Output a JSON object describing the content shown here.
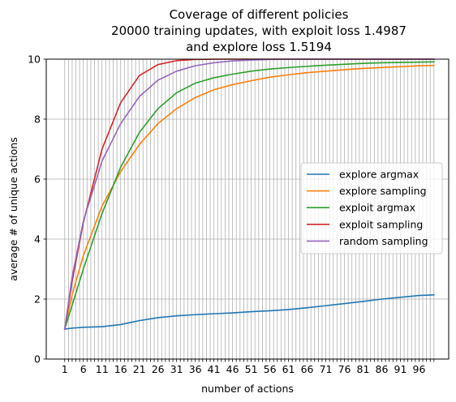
{
  "chart_data": {
    "type": "line",
    "title_lines": [
      "Coverage of different policies",
      "20000 training updates, with exploit loss 1.4987",
      "and explore loss 1.5194"
    ],
    "xlabel": "number of actions",
    "ylabel": "average # of unique actions",
    "xlim": [
      -3.95,
      103.95
    ],
    "ylim": [
      0,
      10
    ],
    "x_ticks": [
      1,
      6,
      11,
      16,
      21,
      26,
      31,
      36,
      41,
      46,
      51,
      56,
      61,
      66,
      71,
      76,
      81,
      86,
      91,
      96
    ],
    "y_ticks": [
      0,
      2,
      4,
      6,
      8,
      10
    ],
    "vertical_grid": "every integer 1-100",
    "horizontal_grid": true,
    "legend_position": "center-right",
    "series": [
      {
        "name": "explore argmax",
        "color": "#1f77b4",
        "points": [
          [
            1,
            1.0
          ],
          [
            3,
            1.03
          ],
          [
            6,
            1.06
          ],
          [
            11,
            1.08
          ],
          [
            16,
            1.15
          ],
          [
            21,
            1.28
          ],
          [
            26,
            1.38
          ],
          [
            31,
            1.44
          ],
          [
            36,
            1.48
          ],
          [
            41,
            1.51
          ],
          [
            46,
            1.54
          ],
          [
            51,
            1.58
          ],
          [
            56,
            1.61
          ],
          [
            61,
            1.65
          ],
          [
            66,
            1.71
          ],
          [
            71,
            1.78
          ],
          [
            76,
            1.85
          ],
          [
            81,
            1.92
          ],
          [
            86,
            2.0
          ],
          [
            91,
            2.06
          ],
          [
            96,
            2.12
          ],
          [
            100,
            2.14
          ]
        ]
      },
      {
        "name": "explore sampling",
        "color": "#ff7f0e",
        "points": [
          [
            1,
            1.0
          ],
          [
            3,
            2.15
          ],
          [
            6,
            3.45
          ],
          [
            11,
            5.1
          ],
          [
            16,
            6.25
          ],
          [
            21,
            7.15
          ],
          [
            26,
            7.85
          ],
          [
            31,
            8.35
          ],
          [
            36,
            8.72
          ],
          [
            41,
            8.98
          ],
          [
            46,
            9.15
          ],
          [
            51,
            9.28
          ],
          [
            56,
            9.4
          ],
          [
            61,
            9.48
          ],
          [
            66,
            9.55
          ],
          [
            71,
            9.6
          ],
          [
            76,
            9.65
          ],
          [
            81,
            9.69
          ],
          [
            86,
            9.72
          ],
          [
            91,
            9.75
          ],
          [
            96,
            9.78
          ],
          [
            100,
            9.79
          ]
        ]
      },
      {
        "name": "exploit argmax",
        "color": "#2ca02c",
        "points": [
          [
            1,
            1.0
          ],
          [
            3,
            1.8
          ],
          [
            6,
            3.0
          ],
          [
            11,
            4.85
          ],
          [
            16,
            6.4
          ],
          [
            21,
            7.55
          ],
          [
            26,
            8.35
          ],
          [
            31,
            8.88
          ],
          [
            36,
            9.2
          ],
          [
            41,
            9.38
          ],
          [
            46,
            9.5
          ],
          [
            51,
            9.6
          ],
          [
            56,
            9.67
          ],
          [
            61,
            9.72
          ],
          [
            66,
            9.76
          ],
          [
            71,
            9.8
          ],
          [
            76,
            9.83
          ],
          [
            81,
            9.86
          ],
          [
            86,
            9.88
          ],
          [
            91,
            9.89
          ],
          [
            96,
            9.9
          ],
          [
            100,
            9.91
          ]
        ]
      },
      {
        "name": "exploit sampling",
        "color": "#d62728",
        "points": [
          [
            1,
            1.0
          ],
          [
            3,
            2.6
          ],
          [
            6,
            4.55
          ],
          [
            11,
            7.0
          ],
          [
            16,
            8.55
          ],
          [
            21,
            9.45
          ],
          [
            26,
            9.82
          ],
          [
            31,
            9.95
          ],
          [
            36,
            9.99
          ],
          [
            41,
            10.0
          ],
          [
            100,
            10.0
          ]
        ]
      },
      {
        "name": "random sampling",
        "color": "#9467bd",
        "points": [
          [
            1,
            1.0
          ],
          [
            3,
            2.75
          ],
          [
            6,
            4.6
          ],
          [
            11,
            6.6
          ],
          [
            16,
            7.85
          ],
          [
            21,
            8.75
          ],
          [
            26,
            9.3
          ],
          [
            31,
            9.6
          ],
          [
            36,
            9.78
          ],
          [
            41,
            9.88
          ],
          [
            46,
            9.94
          ],
          [
            51,
            9.97
          ],
          [
            56,
            9.99
          ],
          [
            61,
            10.0
          ],
          [
            100,
            10.0
          ]
        ]
      }
    ]
  }
}
